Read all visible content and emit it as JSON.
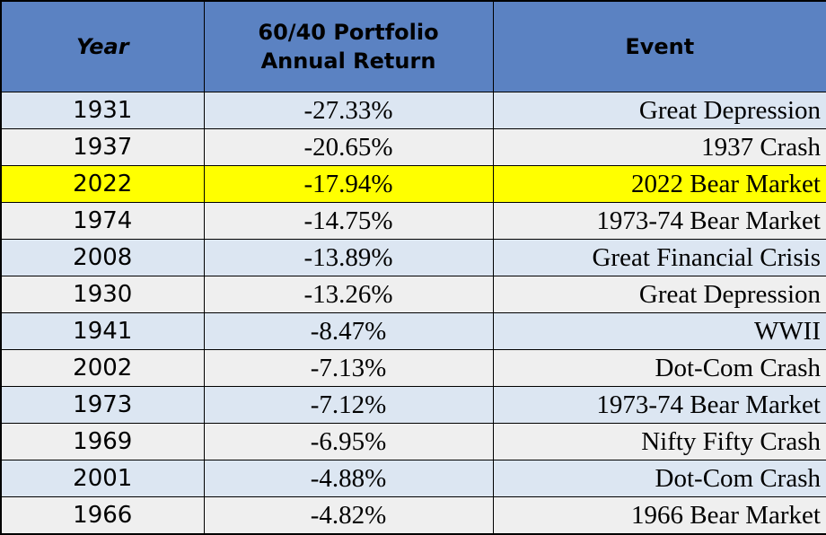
{
  "colors": {
    "header_bg": "#5b82c2",
    "row_alt_a": "#dce6f2",
    "row_alt_b": "#efefef",
    "highlight": "#ffff00"
  },
  "table": {
    "headers": {
      "year": "Year",
      "return_line1": "60/40 Portfolio",
      "return_line2": "Annual Return",
      "event": "Event"
    },
    "highlighted_year": "2022",
    "rows": [
      {
        "year": "1931",
        "ret": "-27.33%",
        "event": "Great Depression"
      },
      {
        "year": "1937",
        "ret": "-20.65%",
        "event": "1937 Crash"
      },
      {
        "year": "2022",
        "ret": "-17.94%",
        "event": "2022 Bear Market"
      },
      {
        "year": "1974",
        "ret": "-14.75%",
        "event": "1973-74 Bear Market"
      },
      {
        "year": "2008",
        "ret": "-13.89%",
        "event": "Great Financial Crisis"
      },
      {
        "year": "1930",
        "ret": "-13.26%",
        "event": "Great Depression"
      },
      {
        "year": "1941",
        "ret": "-8.47%",
        "event": "WWII"
      },
      {
        "year": "2002",
        "ret": "-7.13%",
        "event": "Dot-Com Crash"
      },
      {
        "year": "1973",
        "ret": "-7.12%",
        "event": "1973-74 Bear Market"
      },
      {
        "year": "1969",
        "ret": "-6.95%",
        "event": "Nifty Fifty Crash"
      },
      {
        "year": "2001",
        "ret": "-4.88%",
        "event": "Dot-Com Crash"
      },
      {
        "year": "1966",
        "ret": "-4.82%",
        "event": "1966 Bear Market"
      }
    ]
  }
}
